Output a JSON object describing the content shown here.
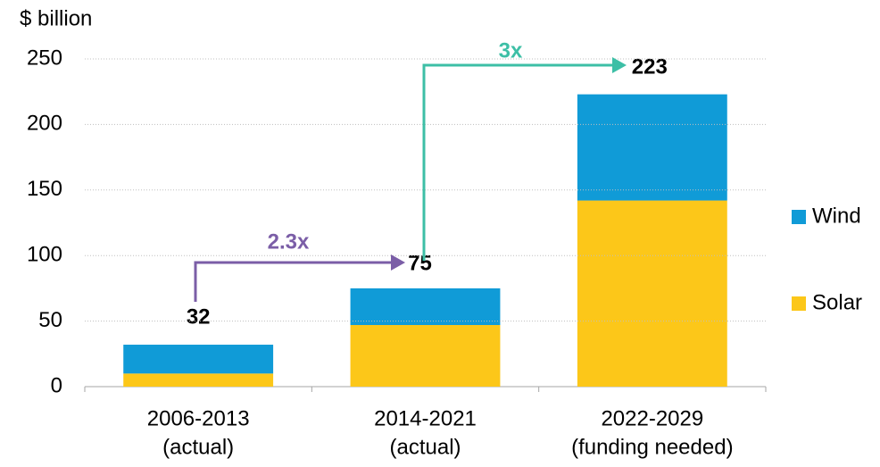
{
  "chart_data": {
    "type": "stacked_bar",
    "y_axis_label": "$ billion",
    "categories": [
      [
        "2006-2013",
        "(actual)"
      ],
      [
        "2014-2021",
        "(actual)"
      ],
      [
        "2022-2029",
        "(funding needed)"
      ]
    ],
    "series": [
      {
        "name": "Solar",
        "color": "#fcc719",
        "values": [
          10,
          47,
          142
        ]
      },
      {
        "name": "Wind",
        "color": "#109bd7",
        "values": [
          22,
          28,
          81
        ]
      }
    ],
    "totals": [
      32,
      75,
      223
    ],
    "annotations": [
      "2.3x",
      "3x"
    ],
    "ylim": [
      0,
      250
    ],
    "yticks": [
      0,
      50,
      100,
      150,
      200,
      250
    ],
    "grid": true,
    "legend": "right"
  }
}
